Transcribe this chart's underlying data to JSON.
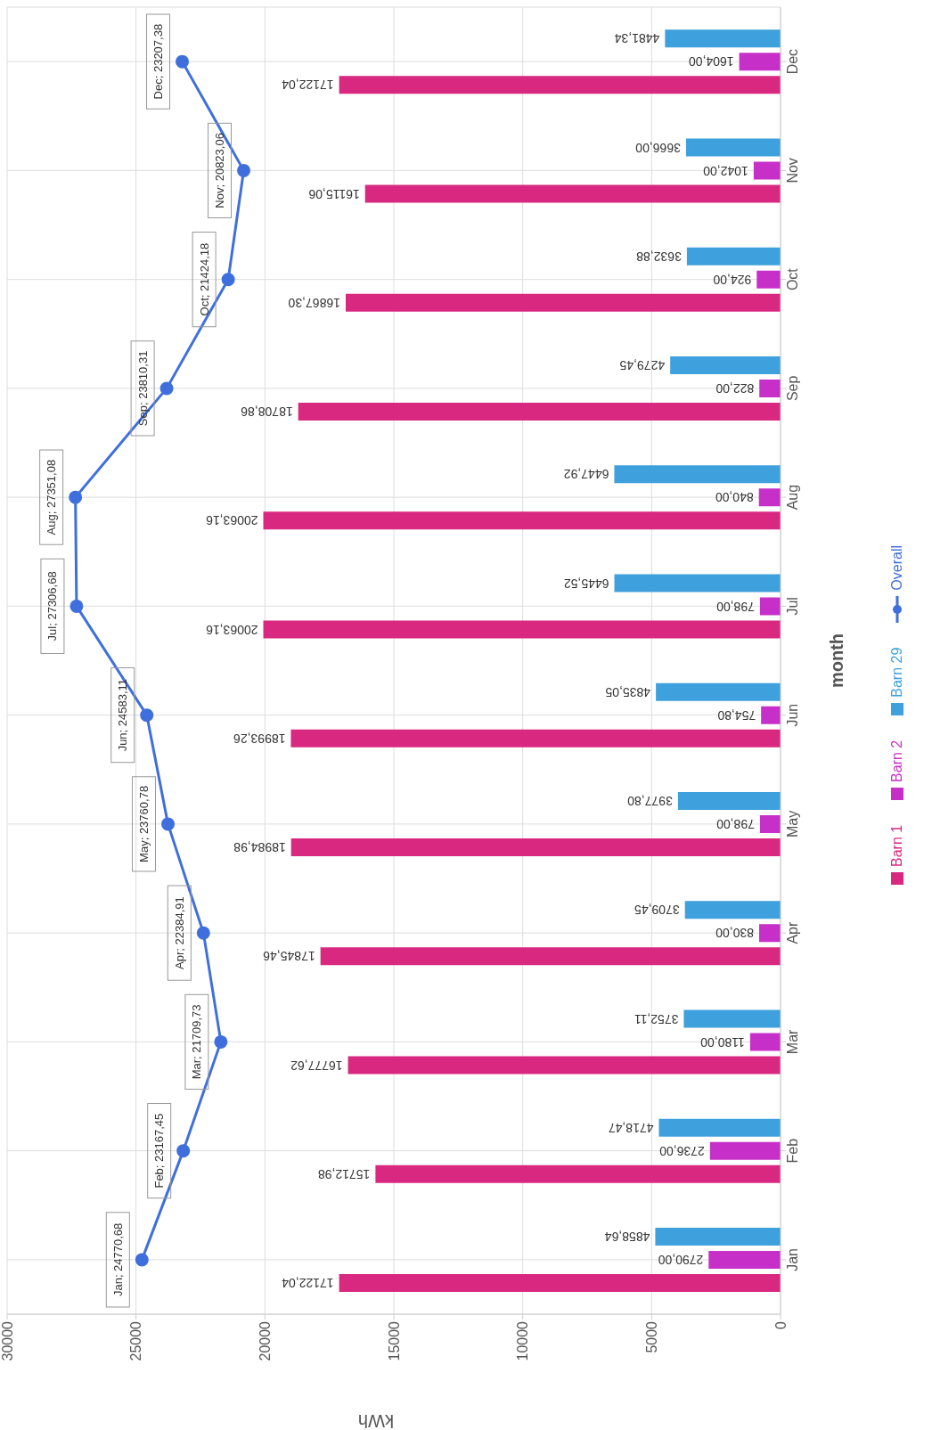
{
  "chart_data": {
    "type": "bar",
    "orientation": "horizontal",
    "xlabel": "kWh",
    "ylabel": "month",
    "categories": [
      "Dec",
      "Nov",
      "Oct",
      "Sep",
      "Aug",
      "Jul",
      "Jun",
      "May",
      "Apr",
      "Mar",
      "Feb",
      "Jan"
    ],
    "series": [
      {
        "name": "Barn 1",
        "color": "#d9287f",
        "values": [
          17122.04,
          16115.06,
          16867.3,
          18708.86,
          20063.16,
          20063.16,
          18993.26,
          18984.98,
          17845.46,
          16777.62,
          15712.98,
          17122.04
        ],
        "value_labels": [
          "17122,04",
          "16115,06",
          "16867,30",
          "18708,86",
          "20063,16",
          "20063,16",
          "18993,26",
          "18984,98",
          "17845,46",
          "16777,62",
          "15712,98",
          "17122,04"
        ]
      },
      {
        "name": "Barn 2",
        "color": "#c72fc9",
        "values": [
          1604.0,
          1042.0,
          924.0,
          822.0,
          840.0,
          798.0,
          754.8,
          798.0,
          830.0,
          1180.0,
          2736.0,
          2790.0
        ],
        "value_labels": [
          "1604,00",
          "1042,00",
          "924,00",
          "822,00",
          "840,00",
          "798,00",
          "754,80",
          "798,00",
          "830,00",
          "1180,00",
          "2736,00",
          "2790,00"
        ]
      },
      {
        "name": "Barn 29",
        "color": "#3ea0dc",
        "values": [
          4481.34,
          3666.0,
          3632.88,
          4279.45,
          6447.92,
          6445.52,
          4835.05,
          3977.8,
          3709.45,
          3752.11,
          4718.47,
          4858.64
        ],
        "value_labels": [
          "4481,34",
          "3666,00",
          "3632,88",
          "4279,45",
          "6447,92",
          "6445,52",
          "4835,05",
          "3977,80",
          "3709,45",
          "3752,11",
          "4718,47",
          "4858,64"
        ]
      },
      {
        "name": "Overall",
        "type": "line",
        "color": "#3f6fdc",
        "values": [
          23207.38,
          20823.06,
          21424.18,
          23810.31,
          27351.08,
          27306.68,
          24583.11,
          23760.78,
          22384.91,
          21709.73,
          23167.45,
          24770.68
        ],
        "value_labels": [
          "Dec; 23207,38",
          "Nov; 20823,06",
          "Oct; 21424,18",
          "Sep; 23810,31",
          "Aug; 27351,08",
          "Jul; 27306,68",
          "Jun; 24583,11",
          "May; 23760,78",
          "Apr; 22384,91",
          "Mar; 21709,73",
          "Feb; 23167,45",
          "Jan; 24770,68"
        ]
      }
    ],
    "xlim": [
      30000,
      0
    ],
    "xticks": [
      30000,
      25000,
      20000,
      15000,
      10000,
      5000,
      0
    ],
    "grid": true,
    "legend": "right",
    "marker": "circle"
  }
}
